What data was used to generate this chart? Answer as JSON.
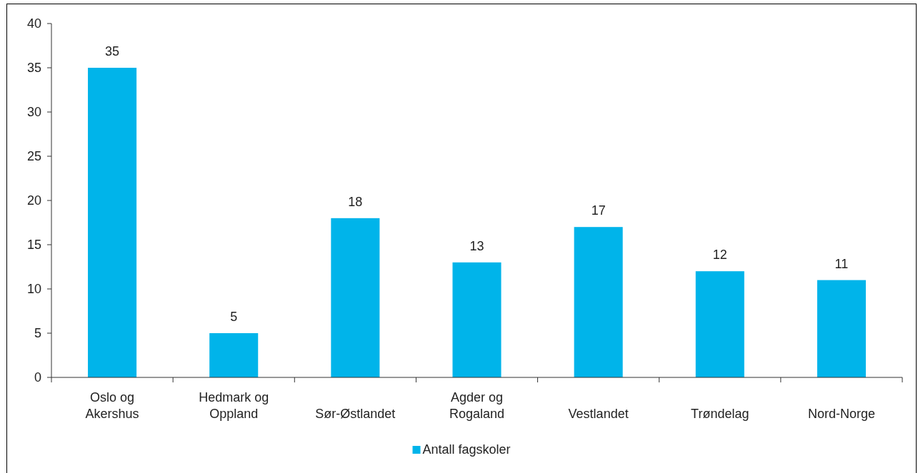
{
  "chart_data": {
    "type": "bar",
    "categories": [
      "Oslo og Akershus",
      "Hedmark og Oppland",
      "Sør-Østlandet",
      "Agder og Rogaland",
      "Vestlandet",
      "Trøndelag",
      "Nord-Norge"
    ],
    "series": [
      {
        "name": "Antall fagskoler",
        "color": "#00b4ea",
        "values": [
          35,
          5,
          18,
          13,
          17,
          12,
          11
        ]
      }
    ],
    "ylim": [
      0,
      40
    ],
    "yticks": [
      0,
      5,
      10,
      15,
      20,
      25,
      30,
      35,
      40
    ],
    "grid": false,
    "legend": "bottom",
    "data_labels": true
  }
}
